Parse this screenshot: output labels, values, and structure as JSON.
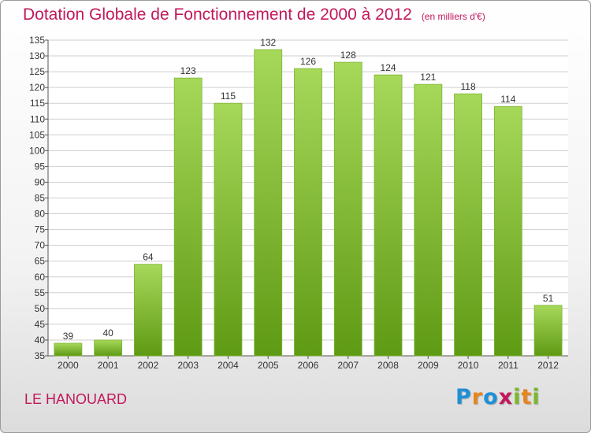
{
  "header": {
    "title": "Dotation Globale de Fonctionnement de 2000 à 2012",
    "subtitle": "(en milliers d'€)"
  },
  "footer": {
    "commune": "LE HANOUARD",
    "logo_letters": [
      "P",
      "r",
      "o",
      "x",
      "i",
      "t",
      "i"
    ],
    "logo_colors": [
      "#1f8fd6",
      "#e8841c",
      "#1f8fd6",
      "#c2185b",
      "#78b928",
      "#e8841c",
      "#78b928"
    ]
  },
  "colors": {
    "title": "#c2185b",
    "bar_light": "#a6d85a",
    "bar_dark": "#5f9a14",
    "grid": "#cfcfcf"
  },
  "chart_data": {
    "type": "bar",
    "categories": [
      "2000",
      "2001",
      "2002",
      "2003",
      "2004",
      "2005",
      "2006",
      "2007",
      "2008",
      "2009",
      "2010",
      "2011",
      "2012"
    ],
    "values": [
      39,
      40,
      64,
      123,
      115,
      132,
      126,
      128,
      124,
      121,
      118,
      114,
      51
    ],
    "ylim": [
      35,
      135
    ],
    "ytick_step": 5,
    "grid": true
  }
}
